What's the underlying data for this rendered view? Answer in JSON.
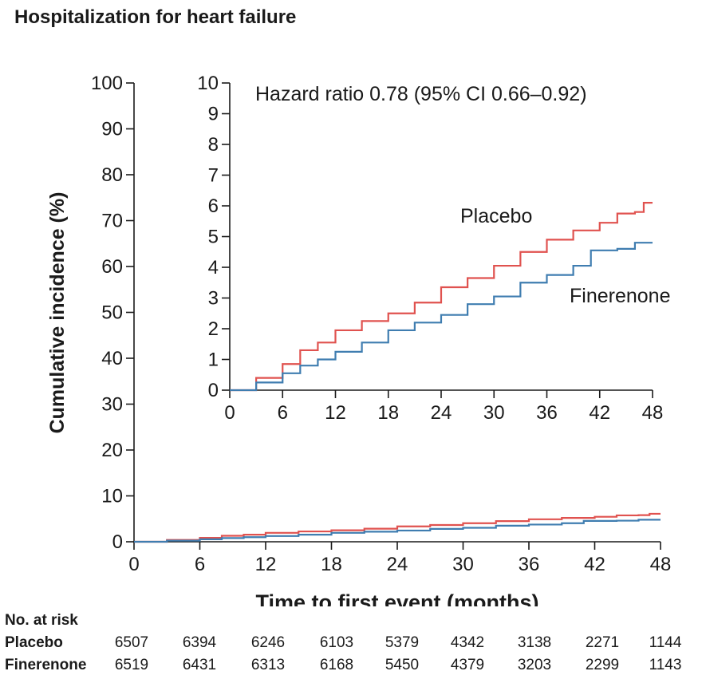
{
  "chart_data": [
    {
      "type": "line",
      "title": "Hospitalization for heart failure",
      "xlabel": "Time to first event (months)",
      "ylabel": "Cumulative incidence (%)",
      "xlim": [
        0,
        48
      ],
      "ylim": [
        0,
        100
      ],
      "x_ticks": [
        "0",
        "6",
        "12",
        "18",
        "24",
        "30",
        "36",
        "42",
        "48"
      ],
      "y_ticks": [
        "0",
        "10",
        "20",
        "30",
        "40",
        "50",
        "60",
        "70",
        "80",
        "90",
        "100"
      ],
      "series": [
        {
          "name": "Placebo",
          "color": "#e0524f",
          "x": [
            0,
            3,
            6,
            8,
            10,
            12,
            15,
            18,
            21,
            24,
            27,
            30,
            33,
            36,
            39,
            42,
            44,
            46,
            47,
            48
          ],
          "y": [
            0,
            0.4,
            0.85,
            1.3,
            1.55,
            1.95,
            2.25,
            2.5,
            2.85,
            3.35,
            3.65,
            4.05,
            4.5,
            4.9,
            5.2,
            5.45,
            5.75,
            5.8,
            6.1,
            6.1
          ]
        },
        {
          "name": "Finerenone",
          "color": "#3f7db0",
          "x": [
            0,
            3,
            6,
            8,
            10,
            12,
            15,
            18,
            21,
            24,
            27,
            30,
            33,
            36,
            39,
            41,
            44,
            46,
            48
          ],
          "y": [
            0,
            0.25,
            0.55,
            0.8,
            1.0,
            1.25,
            1.55,
            1.95,
            2.2,
            2.45,
            2.8,
            3.05,
            3.5,
            3.75,
            4.05,
            4.55,
            4.6,
            4.8,
            4.8
          ]
        }
      ]
    },
    {
      "type": "line",
      "inset": true,
      "xlim": [
        0,
        48
      ],
      "ylim": [
        0,
        10
      ],
      "x_ticks": [
        "0",
        "6",
        "12",
        "18",
        "24",
        "30",
        "36",
        "42",
        "48"
      ],
      "y_ticks": [
        "0",
        "1",
        "2",
        "3",
        "4",
        "5",
        "6",
        "7",
        "8",
        "9",
        "10"
      ],
      "annotation": "Hazard ratio 0.78 (95% CI 0.66–0.92)",
      "series_labels": [
        "Placebo",
        "Finerenone"
      ]
    }
  ],
  "risk_table": {
    "title": "No. at risk",
    "rows": [
      {
        "name": "Placebo",
        "values": [
          "6507",
          "6394",
          "6246",
          "6103",
          "5379",
          "4342",
          "3138",
          "2271",
          "1144"
        ]
      },
      {
        "name": "Finerenone",
        "values": [
          "6519",
          "6431",
          "6313",
          "6168",
          "5450",
          "4379",
          "3203",
          "2299",
          "1143"
        ]
      }
    ]
  }
}
